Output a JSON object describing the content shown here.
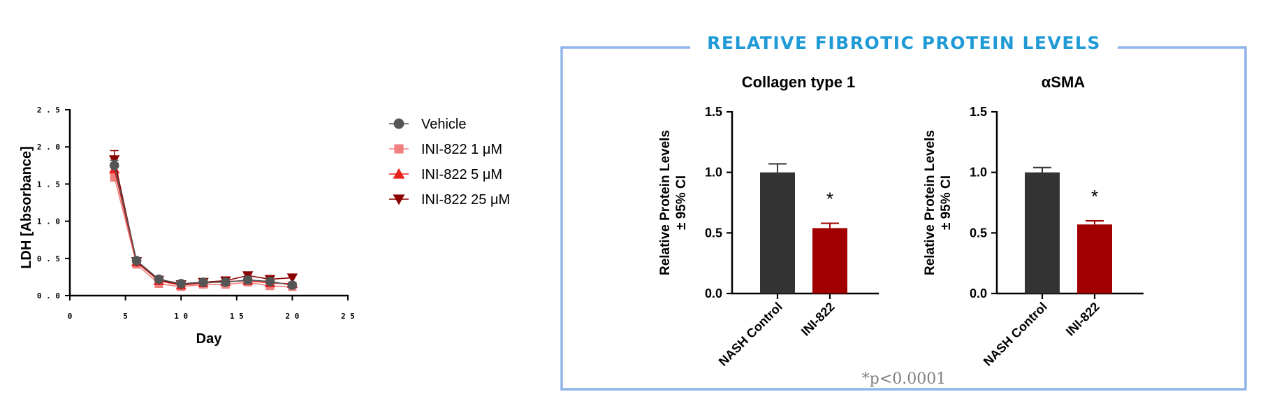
{
  "panel_box": {
    "title": "RELATIVE FIBROTIC PROTEIN LEVELS",
    "title_color": "#1f9ad6",
    "border_color": "#8fb4ea",
    "footnote": "*p<0.0001"
  },
  "chart_data": [
    {
      "type": "line",
      "xlabel": "Day",
      "ylabel": "LDH [Absorbance]",
      "xlim": [
        0,
        25
      ],
      "ylim": [
        0,
        2.5
      ],
      "xticks": [
        "0",
        "5",
        "1 0",
        "1 5",
        "2 0",
        "2 5"
      ],
      "xtick_values": [
        0,
        5,
        10,
        15,
        20,
        25
      ],
      "yticks": [
        "0 . 0",
        "0 . 5",
        "1 . 0",
        "1 . 5",
        "2 . 0",
        "2 . 5"
      ],
      "ytick_values": [
        0,
        0.5,
        1.0,
        1.5,
        2.0,
        2.5
      ],
      "legend_position": "right",
      "x": [
        4,
        6,
        8,
        10,
        12,
        14,
        16,
        18,
        20
      ],
      "series": [
        {
          "name": "Vehicle",
          "color": "#555555",
          "marker": "circle",
          "values": [
            1.75,
            0.47,
            0.22,
            0.16,
            0.18,
            0.18,
            0.21,
            0.19,
            0.14
          ],
          "errors": [
            0.07,
            0.04,
            0.02,
            0.04,
            0.02,
            0.03,
            0.04,
            0.03,
            0.03
          ]
        },
        {
          "name": "INI-822 1 μM",
          "color": "#f08080",
          "marker": "square",
          "values": [
            1.6,
            0.42,
            0.16,
            0.12,
            0.15,
            0.15,
            0.18,
            0.13,
            0.12
          ],
          "errors": [
            0.06,
            0.03,
            0.02,
            0.02,
            0.02,
            0.03,
            0.03,
            0.02,
            0.02
          ]
        },
        {
          "name": "INI-822 5 μM",
          "color": "#e8201e",
          "marker": "triangle-up",
          "values": [
            1.7,
            0.45,
            0.2,
            0.14,
            0.17,
            0.19,
            0.2,
            0.17,
            0.16
          ],
          "errors": [
            0.08,
            0.03,
            0.02,
            0.03,
            0.02,
            0.06,
            0.03,
            0.03,
            0.02
          ]
        },
        {
          "name": "INI-822 25 μM",
          "color": "#8b0000",
          "marker": "triangle-down",
          "values": [
            1.83,
            0.46,
            0.21,
            0.15,
            0.18,
            0.2,
            0.27,
            0.22,
            0.24
          ],
          "errors": [
            0.12,
            0.03,
            0.02,
            0.03,
            0.02,
            0.05,
            0.03,
            0.04,
            0.03
          ]
        }
      ]
    },
    {
      "type": "bar",
      "title": "Collagen type 1",
      "ylabel": [
        "Relative Protein Levels",
        "± 95% CI"
      ],
      "ylim": [
        0,
        1.5
      ],
      "yticks": [
        "0.0",
        "0.5",
        "1.0",
        "1.5"
      ],
      "ytick_values": [
        0,
        0.5,
        1.0,
        1.5
      ],
      "categories": [
        "NASH Control",
        "INI-822"
      ],
      "values": [
        1.0,
        0.54
      ],
      "errors": [
        0.07,
        0.04
      ],
      "colors": [
        "#333333",
        "#a00000"
      ],
      "annotations": [
        "",
        "*"
      ]
    },
    {
      "type": "bar",
      "title": "αSMA",
      "ylabel": [
        "Relative Protein Levels",
        "± 95% CI"
      ],
      "ylim": [
        0,
        1.5
      ],
      "yticks": [
        "0.0",
        "0.5",
        "1.0",
        "1.5"
      ],
      "ytick_values": [
        0,
        0.5,
        1.0,
        1.5
      ],
      "categories": [
        "NASH Control",
        "INI-822"
      ],
      "values": [
        1.0,
        0.57
      ],
      "errors": [
        0.04,
        0.03
      ],
      "colors": [
        "#333333",
        "#a00000"
      ],
      "annotations": [
        "",
        "*"
      ]
    }
  ]
}
